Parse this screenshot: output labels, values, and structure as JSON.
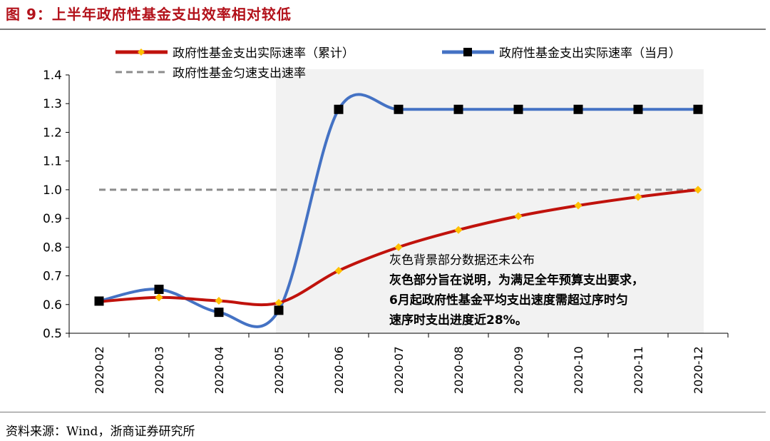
{
  "header": {
    "title": "图 9：上半年政府性基金支出效率相对较低"
  },
  "footer": {
    "source": "资料来源：Wind，浙商证券研究所"
  },
  "colors": {
    "cumulative": "#c0120c",
    "cumulative_marker": "#ffc000",
    "monthly": "#4472c4",
    "monthly_marker": "#000000",
    "uniform": "#8c8c8c",
    "shade": "#f2f2f2",
    "title": "#b3121b"
  },
  "chart_data": {
    "type": "line",
    "title": "",
    "xlabel": "",
    "ylabel": "",
    "x": [
      "2020-02",
      "2020-03",
      "2020-04",
      "2020-05",
      "2020-06",
      "2020-07",
      "2020-08",
      "2020-09",
      "2020-10",
      "2020-11",
      "2020-12"
    ],
    "ylim": [
      0.5,
      1.4
    ],
    "yticks": [
      "0.5",
      "0.6",
      "0.7",
      "0.8",
      "0.9",
      "1.0",
      "1.1",
      "1.2",
      "1.3",
      "1.4"
    ],
    "grid": false,
    "legend_position": "top",
    "series": [
      {
        "name": "政府性基金支出实际速率（累计）",
        "style": "line-diamond",
        "values": [
          0.61,
          0.625,
          0.613,
          0.606,
          0.718,
          0.8,
          0.86,
          0.908,
          0.945,
          0.975,
          1.0
        ]
      },
      {
        "name": "政府性基金支出实际速率（当月）",
        "style": "line-square",
        "values": [
          0.612,
          0.653,
          0.573,
          0.58,
          1.28,
          1.28,
          1.28,
          1.28,
          1.28,
          1.28,
          1.28
        ]
      },
      {
        "name": "政府性基金匀速支出速率",
        "style": "dashed",
        "values": [
          1.0,
          1.0,
          1.0,
          1.0,
          1.0,
          1.0,
          1.0,
          1.0,
          1.0,
          1.0,
          1.0
        ]
      }
    ],
    "shaded_region": {
      "from": "2020-05",
      "to": "2020-12"
    },
    "annotations": [
      "灰色背景部分数据还未公布",
      "灰色部分旨在说明，为满足全年预算支出要求，",
      "6月起政府性基金平均支出速度需超过序时匀",
      "速序时支出进度近28%。"
    ]
  }
}
